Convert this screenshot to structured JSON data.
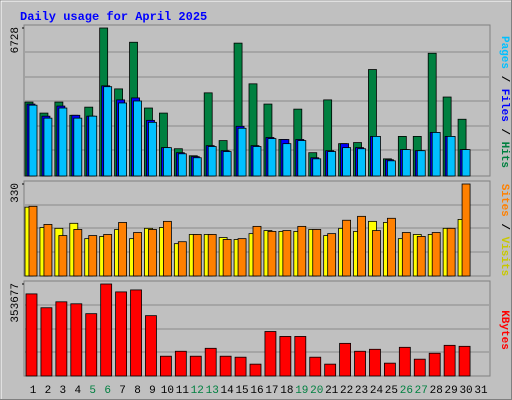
{
  "chart_data": [
    {
      "type": "bar",
      "title": "Daily usage for April 2025",
      "series": [
        {
          "name": "Hits",
          "color": "#008040",
          "values": [
            3360,
            2860,
            3360,
            2760,
            3130,
            6728,
            3960,
            6080,
            3090,
            2860,
            1240,
            920,
            3780,
            1610,
            6040,
            4190,
            3270,
            1660,
            3040,
            1060,
            3460,
            1470,
            1520,
            4840,
            780,
            1800,
            1800,
            5580,
            3590,
            2580,
            0
          ]
        },
        {
          "name": "Files",
          "color": "#0000FF",
          "values": [
            3270,
            2720,
            3180,
            2760,
            2720,
            4100,
            3460,
            3550,
            2530,
            1290,
            1060,
            880,
            1380,
            1150,
            2260,
            1380,
            1750,
            1660,
            1660,
            830,
            1150,
            1470,
            1290,
            1800,
            740,
            1200,
            1150,
            1980,
            1800,
            1200,
            0
          ]
        },
        {
          "name": "Pages",
          "color": "#00C0FF",
          "values": [
            3220,
            2630,
            3090,
            2630,
            2720,
            4060,
            3320,
            3410,
            2440,
            1290,
            1010,
            830,
            1340,
            1110,
            2170,
            1340,
            1700,
            1470,
            1610,
            780,
            1110,
            1290,
            1240,
            1800,
            690,
            1200,
            1150,
            1980,
            1800,
            1200,
            0
          ]
        }
      ],
      "ylim": [
        0,
        6728
      ],
      "yticks": [
        6728
      ],
      "legend_separator": " / "
    },
    {
      "type": "bar",
      "series": [
        {
          "name": "Visits",
          "color": "#FFFF00",
          "values": [
            247,
            174,
            171,
            189,
            134,
            142,
            167,
            134,
            171,
            174,
            116,
            149,
            149,
            138,
            131,
            152,
            163,
            160,
            160,
            167,
            145,
            171,
            160,
            196,
            192,
            134,
            149,
            149,
            171,
            203,
            0
          ]
        },
        {
          "name": "Sites",
          "color": "#FF8000",
          "values": [
            250,
            185,
            145,
            167,
            145,
            149,
            192,
            156,
            167,
            196,
            123,
            149,
            149,
            131,
            134,
            178,
            160,
            163,
            178,
            167,
            152,
            200,
            214,
            163,
            207,
            156,
            142,
            156,
            171,
            330,
            0
          ]
        }
      ],
      "ylim": [
        0,
        330
      ],
      "yticks": [
        330
      ],
      "legend_separator": " / "
    },
    {
      "type": "bar",
      "categories": [
        "1",
        "2",
        "3",
        "4",
        "5",
        "6",
        "7",
        "8",
        "9",
        "10",
        "11",
        "12",
        "13",
        "14",
        "15",
        "16",
        "17",
        "18",
        "19",
        "20",
        "21",
        "22",
        "23",
        "24",
        "25",
        "26",
        "27",
        "28",
        "29",
        "30",
        "31"
      ],
      "highlight": {
        "color": "#008040",
        "categories": [
          "5",
          "6",
          "12",
          "13",
          "19",
          "20",
          "26",
          "27"
        ]
      },
      "series": [
        {
          "name": "KBytes",
          "color": "#FF0000",
          "values": [
            315650,
            262400,
            285200,
            277600,
            239600,
            353677,
            323300,
            330900,
            232000,
            76100,
            95100,
            76100,
            106500,
            76100,
            72300,
            45600,
            171100,
            152100,
            152100,
            72300,
            45600,
            125500,
            95100,
            102700,
            49400,
            110300,
            64700,
            87500,
            117900,
            114100,
            0
          ]
        }
      ],
      "ylim": [
        0,
        353677
      ],
      "yticks": [
        353677
      ],
      "legend_separator": " / "
    }
  ]
}
